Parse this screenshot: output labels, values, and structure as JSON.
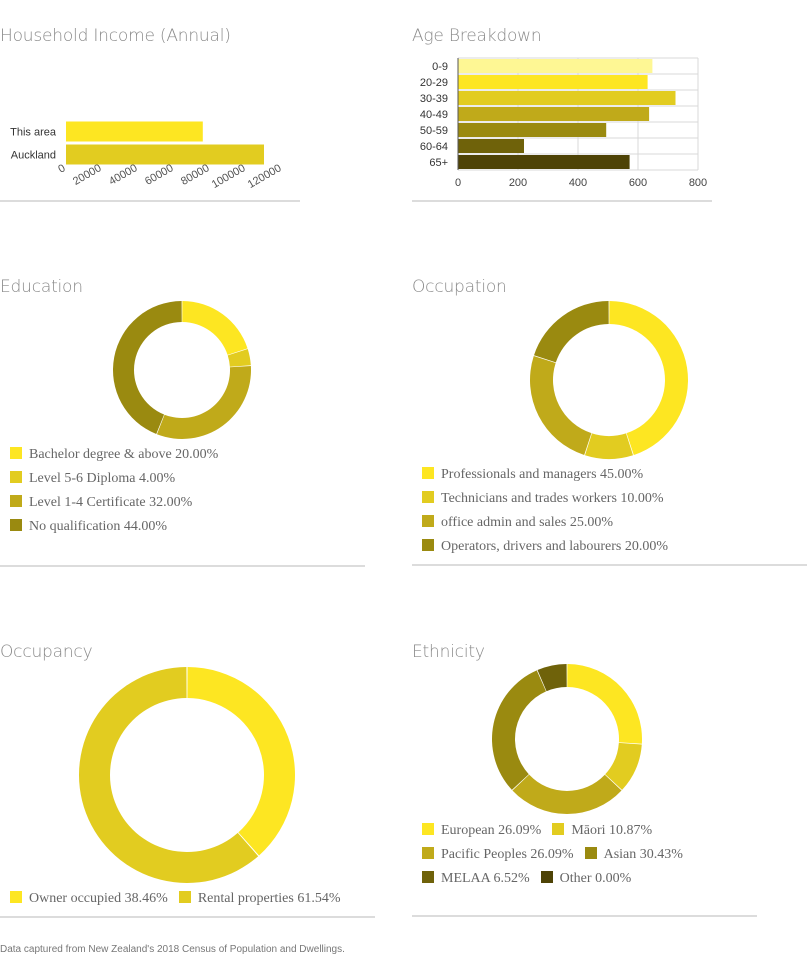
{
  "palette": [
    "#fde622",
    "#e2cc20",
    "#c0aa1a",
    "#9a8a10",
    "#6f620a",
    "#4e4306"
  ],
  "age_palette": [
    "#fef794",
    "#fde622",
    "#e2cc20",
    "#c0aa1a",
    "#9a8a10",
    "#6f620a",
    "#4e4306"
  ],
  "chart_data": [
    {
      "id": "income",
      "type": "bar",
      "orientation": "horizontal",
      "title": "Household Income (Annual)",
      "categories": [
        "This area",
        "Auckland"
      ],
      "values": [
        76000,
        110000
      ],
      "colors": [
        "#fde622",
        "#e2cc20"
      ],
      "xlim": [
        0,
        120000
      ],
      "xticks": [
        "0",
        "20000",
        "40000",
        "60000",
        "80000",
        "100000",
        "120000"
      ],
      "grid": false
    },
    {
      "id": "age",
      "type": "bar",
      "orientation": "horizontal",
      "title": "Age Breakdown",
      "categories": [
        "0-9",
        "20-29",
        "30-39",
        "40-49",
        "50-59",
        "60-64",
        "65+"
      ],
      "values": [
        648,
        632,
        725,
        637,
        494,
        220,
        572
      ],
      "xlim": [
        0,
        800
      ],
      "xticks": [
        "0",
        "200",
        "400",
        "600",
        "800"
      ],
      "grid": true
    },
    {
      "id": "education",
      "type": "pie",
      "donut": true,
      "title": "Education",
      "slices": [
        {
          "label": "Bachelor degree & above",
          "value": 20.0,
          "display": "20.00%"
        },
        {
          "label": "Level 5-6 Diploma",
          "value": 4.0,
          "display": "4.00%"
        },
        {
          "label": "Level 1-4 Certificate",
          "value": 32.0,
          "display": "32.00%"
        },
        {
          "label": "No qualification",
          "value": 44.0,
          "display": "44.00%"
        }
      ]
    },
    {
      "id": "occupation",
      "type": "pie",
      "donut": true,
      "title": "Occupation",
      "slices": [
        {
          "label": "Professionals and managers",
          "value": 45.0,
          "display": "45.00%"
        },
        {
          "label": "Technicians and trades workers",
          "value": 10.0,
          "display": "10.00%"
        },
        {
          "label": "office admin and sales",
          "value": 25.0,
          "display": "25.00%"
        },
        {
          "label": "Operators, drivers and labourers",
          "value": 20.0,
          "display": "20.00%"
        }
      ]
    },
    {
      "id": "occupancy",
      "type": "pie",
      "donut": true,
      "title": "Occupancy",
      "slices": [
        {
          "label": "Owner occupied",
          "value": 38.46,
          "display": "38.46%"
        },
        {
          "label": "Rental properties",
          "value": 61.54,
          "display": "61.54%"
        }
      ]
    },
    {
      "id": "ethnicity",
      "type": "pie",
      "donut": true,
      "title": "Ethnicity",
      "slices": [
        {
          "label": "European",
          "value": 26.09,
          "display": "26.09%"
        },
        {
          "label": "Māori",
          "value": 10.87,
          "display": "10.87%"
        },
        {
          "label": "Pacific Peoples",
          "value": 26.09,
          "display": "26.09%"
        },
        {
          "label": "Asian",
          "value": 30.43,
          "display": "30.43%"
        },
        {
          "label": "MELAA",
          "value": 6.52,
          "display": "6.52%"
        },
        {
          "label": "Other",
          "value": 0.0,
          "display": "0.00%"
        }
      ]
    }
  ],
  "footer": "Data captured from New Zealand's 2018 Census of Population and Dwellings."
}
